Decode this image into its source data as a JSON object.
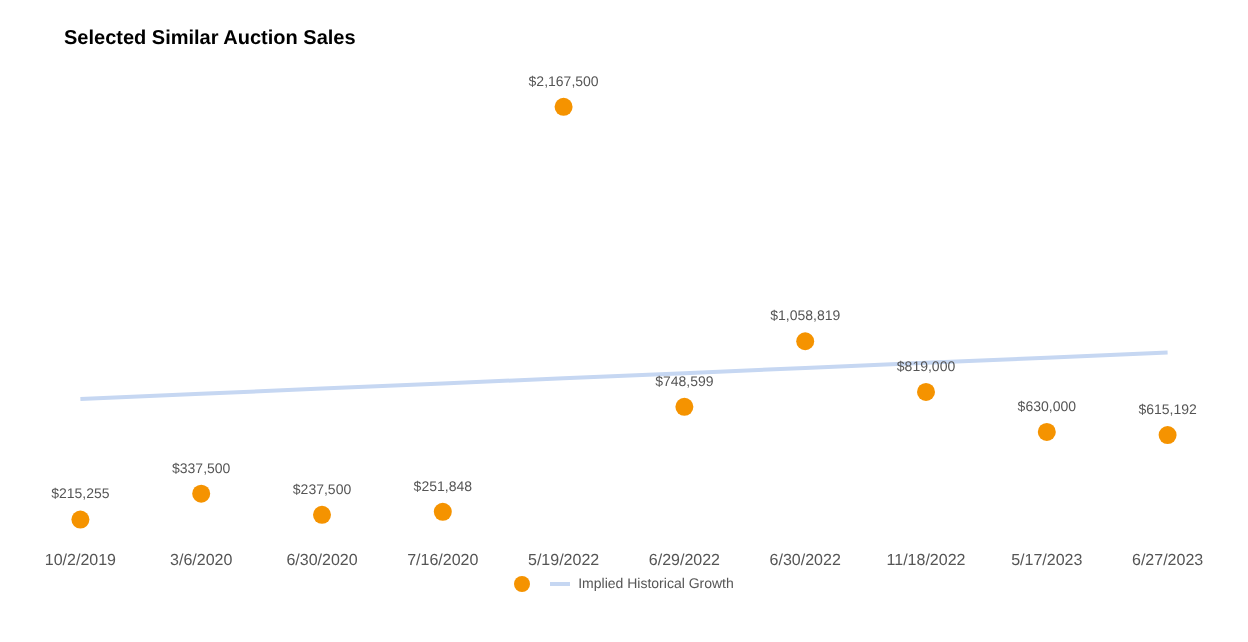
{
  "chart_data": {
    "type": "scatter",
    "title": "Selected Similar Auction Sales",
    "categories": [
      "10/2/2019",
      "3/6/2020",
      "6/30/2020",
      "7/16/2020",
      "5/19/2022",
      "6/29/2022",
      "6/30/2022",
      "11/18/2022",
      "5/17/2023",
      "6/27/2023"
    ],
    "series": [
      {
        "color": "#f59300",
        "marker": "circle",
        "values": [
          215255,
          337500,
          237500,
          251848,
          2167500,
          748599,
          1058819,
          819000,
          630000,
          615192
        ],
        "value_labels": [
          "$215,255",
          "$337,500",
          "$237,500",
          "$251,848",
          "$2,167,500",
          "$748,599",
          "$1,058,819",
          "$819,000",
          "$630,000",
          "$615,192"
        ]
      },
      {
        "type": "line",
        "marker": "none",
        "name": "Implied Historical Growth",
        "color": "#c6d7f2",
        "values": [
          786000,
          810000,
          835000,
          859000,
          884000,
          908000,
          932000,
          957000,
          981000,
          1005000
        ]
      }
    ],
    "tick_labels": "x",
    "grid": false,
    "legend": "bottom"
  }
}
